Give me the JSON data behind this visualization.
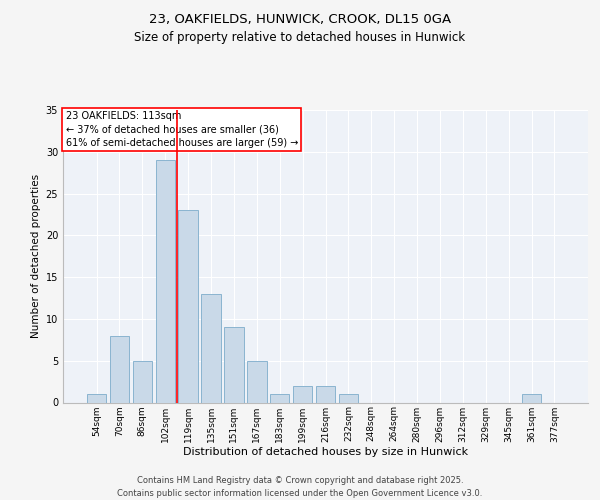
{
  "title_line1": "23, OAKFIELDS, HUNWICK, CROOK, DL15 0GA",
  "title_line2": "Size of property relative to detached houses in Hunwick",
  "xlabel": "Distribution of detached houses by size in Hunwick",
  "ylabel": "Number of detached properties",
  "categories": [
    "54sqm",
    "70sqm",
    "86sqm",
    "102sqm",
    "119sqm",
    "135sqm",
    "151sqm",
    "167sqm",
    "183sqm",
    "199sqm",
    "216sqm",
    "232sqm",
    "248sqm",
    "264sqm",
    "280sqm",
    "296sqm",
    "312sqm",
    "329sqm",
    "345sqm",
    "361sqm",
    "377sqm"
  ],
  "values": [
    1,
    8,
    5,
    29,
    23,
    13,
    9,
    5,
    1,
    2,
    2,
    1,
    0,
    0,
    0,
    0,
    0,
    0,
    0,
    1,
    0
  ],
  "bar_color": "#c9d9e8",
  "bar_edgecolor": "#8ab4d0",
  "bar_width": 0.85,
  "red_line_x": 3.5,
  "annotation_text": "23 OAKFIELDS: 113sqm\n← 37% of detached houses are smaller (36)\n61% of semi-detached houses are larger (59) →",
  "ylim": [
    0,
    35
  ],
  "yticks": [
    0,
    5,
    10,
    15,
    20,
    25,
    30,
    35
  ],
  "bg_color": "#eef2f8",
  "grid_color": "#ffffff",
  "fig_bg_color": "#f5f5f5",
  "footer_text": "Contains HM Land Registry data © Crown copyright and database right 2025.\nContains public sector information licensed under the Open Government Licence v3.0.",
  "title_fontsize": 9.5,
  "subtitle_fontsize": 8.5,
  "ylabel_fontsize": 7.5,
  "xlabel_fontsize": 8,
  "annotation_fontsize": 7,
  "tick_fontsize": 6.5,
  "ytick_fontsize": 7,
  "footer_fontsize": 6
}
